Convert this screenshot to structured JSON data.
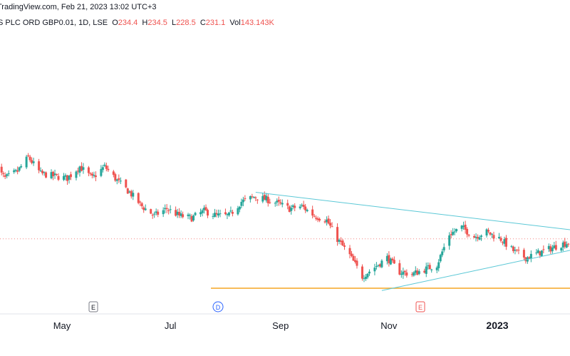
{
  "header": {
    "source": "TradingView.com, Feb 21, 2023 13:02 UTC+3",
    "symbol": "S PLC ORD GBP0.01, 1D, LSE",
    "o_label": "O",
    "o_value": "234.4",
    "h_label": "H",
    "h_value": "234.5",
    "l_label": "L",
    "l_value": "228.5",
    "c_label": "C",
    "c_value": "231.1",
    "vol_label": "Vol",
    "vol_value": "143.143K"
  },
  "chart_data": {
    "type": "candlestick",
    "title": "",
    "xlabel": "",
    "ylabel": "",
    "x_ticks": [
      "May",
      "Jul",
      "Sep",
      "Nov",
      "2023"
    ],
    "event_markers": [
      {
        "label": "E",
        "kind": "earnings",
        "position_month": "Apr"
      },
      {
        "label": "D",
        "kind": "dividend",
        "position_month": "Aug"
      },
      {
        "label": "E",
        "kind": "earnings",
        "position_month": "Nov"
      }
    ],
    "colors": {
      "up": "#26a69a",
      "down": "#ef5350",
      "trendline": "#5bc8d6",
      "support": "#f5a623",
      "price_line": "#ef5350"
    },
    "last_close": 231.1,
    "support_level": 210,
    "grid": false,
    "legend": "none",
    "price_path": [
      [
        "2022-03-24",
        262
      ],
      [
        "2022-03-30",
        257
      ],
      [
        "2022-04-06",
        260
      ],
      [
        "2022-04-12",
        266
      ],
      [
        "2022-04-19",
        259
      ],
      [
        "2022-04-26",
        258
      ],
      [
        "2022-05-04",
        257
      ],
      [
        "2022-05-11",
        262
      ],
      [
        "2022-05-18",
        257
      ],
      [
        "2022-05-25",
        262
      ],
      [
        "2022-06-01",
        256
      ],
      [
        "2022-06-08",
        251
      ],
      [
        "2022-06-15",
        245
      ],
      [
        "2022-06-22",
        241
      ],
      [
        "2022-06-29",
        244
      ],
      [
        "2022-07-06",
        241
      ],
      [
        "2022-07-13",
        240
      ],
      [
        "2022-07-20",
        243
      ],
      [
        "2022-07-27",
        241
      ],
      [
        "2022-08-03",
        241
      ],
      [
        "2022-08-10",
        247
      ],
      [
        "2022-08-17",
        249
      ],
      [
        "2022-08-24",
        248
      ],
      [
        "2022-08-31",
        246
      ],
      [
        "2022-09-06",
        244
      ],
      [
        "2022-09-13",
        245
      ],
      [
        "2022-09-20",
        241
      ],
      [
        "2022-09-27",
        239
      ],
      [
        "2022-10-03",
        231
      ],
      [
        "2022-10-10",
        224
      ],
      [
        "2022-10-17",
        215
      ],
      [
        "2022-10-24",
        219
      ],
      [
        "2022-10-31",
        223
      ],
      [
        "2022-11-07",
        217
      ],
      [
        "2022-11-14",
        216
      ],
      [
        "2022-11-21",
        218
      ],
      [
        "2022-11-28",
        220
      ],
      [
        "2022-12-05",
        233
      ],
      [
        "2022-12-12",
        236
      ],
      [
        "2022-12-19",
        232
      ],
      [
        "2022-12-26",
        234
      ],
      [
        "2023-01-03",
        231
      ],
      [
        "2023-01-10",
        226
      ],
      [
        "2023-01-17",
        223
      ],
      [
        "2023-01-24",
        225
      ],
      [
        "2023-01-31",
        227
      ],
      [
        "2023-02-07",
        229
      ],
      [
        "2023-02-14",
        230
      ],
      [
        "2023-02-21",
        231.1
      ]
    ],
    "trendlines": [
      {
        "from": [
          "2022-08-18",
          251
        ],
        "to": [
          "2023-02-22",
          234
        ]
      },
      {
        "from": [
          "2022-10-28",
          209
        ],
        "to": [
          "2023-02-22",
          228
        ]
      }
    ]
  }
}
